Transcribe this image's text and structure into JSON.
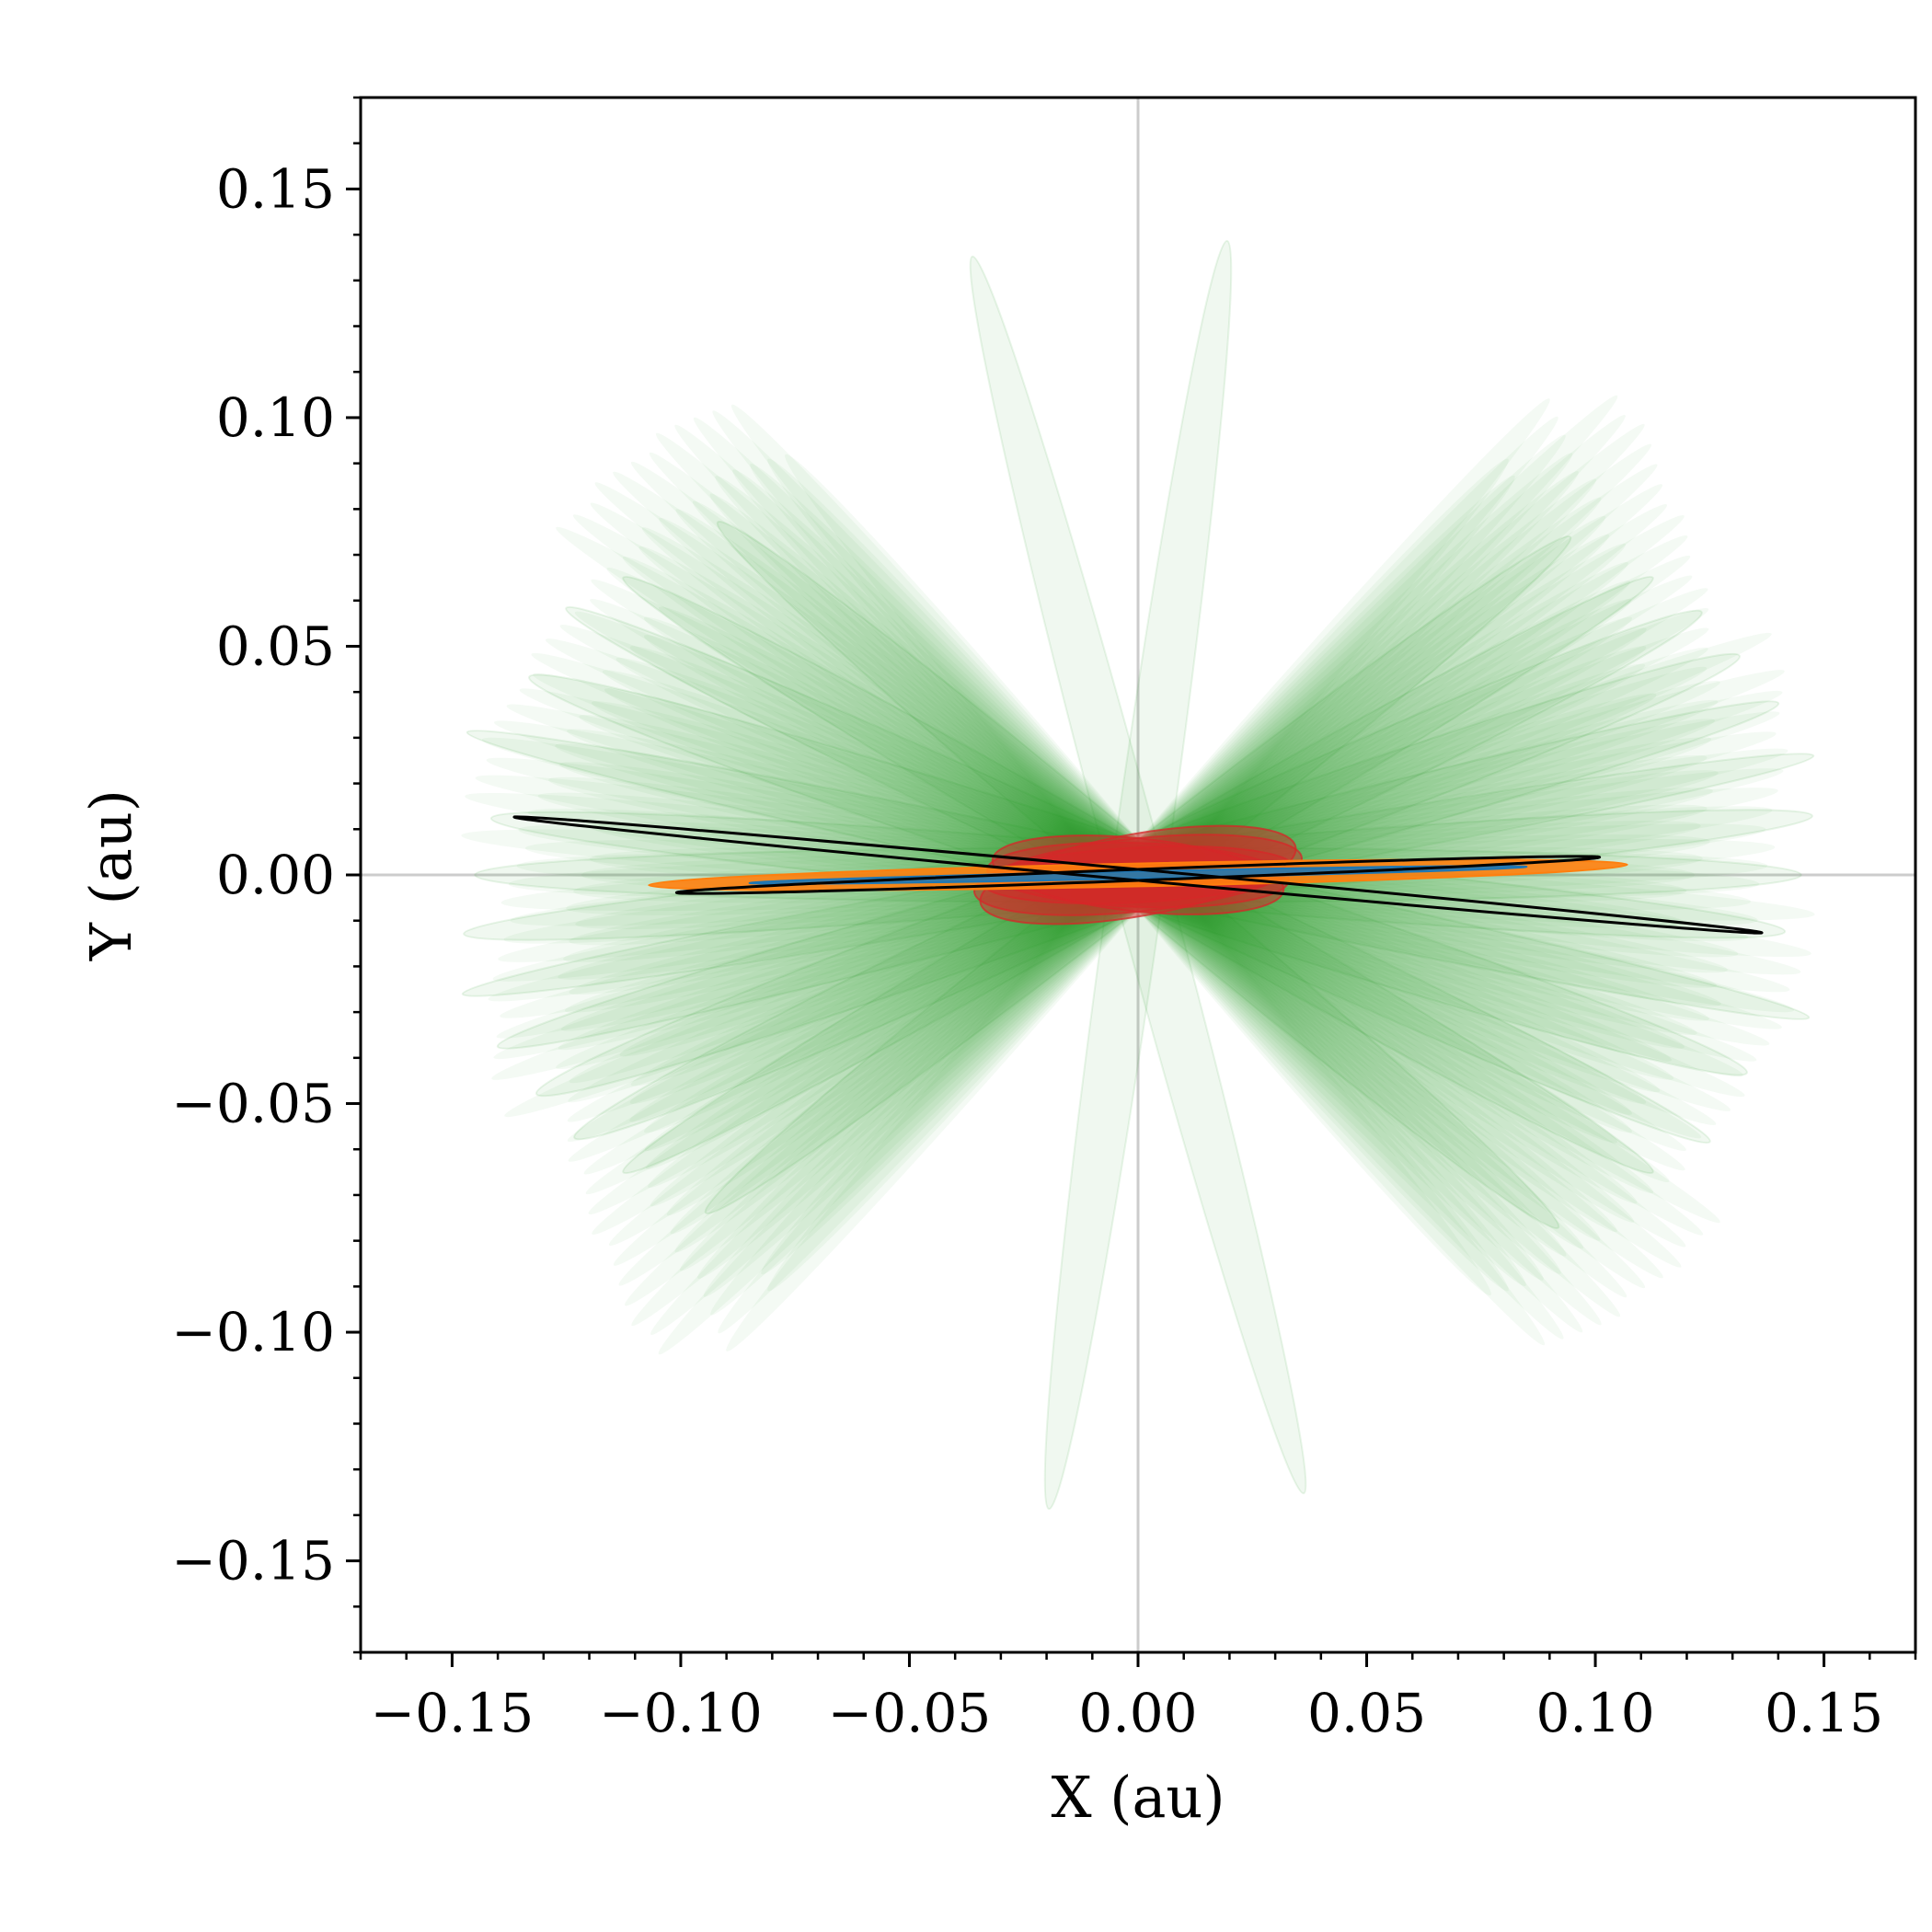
{
  "chart_data": {
    "type": "line",
    "title": "",
    "xlabel": "X (au)",
    "ylabel": "Y (au)",
    "xlim": [
      -0.17,
      0.17
    ],
    "ylim": [
      -0.17,
      0.17
    ],
    "xticks": [
      -0.15,
      -0.1,
      -0.05,
      0.0,
      0.05,
      0.1,
      0.15
    ],
    "yticks": [
      -0.15,
      -0.1,
      -0.05,
      0.0,
      0.05,
      0.1,
      0.15
    ],
    "xtick_labels": [
      "−0.15",
      "−0.10",
      "−0.05",
      "0.00",
      "0.05",
      "0.10",
      "0.15"
    ],
    "ytick_labels": [
      "−0.15",
      "−0.10",
      "−0.05",
      "0.00",
      "0.05",
      "0.10",
      "0.15"
    ],
    "reference_lines": {
      "x0": true,
      "y0": true,
      "color": "#cccccc"
    },
    "grid": false,
    "legend": "none",
    "colors": {
      "ensemble_outer": "#2ca02c",
      "ensemble_mid": "#d62728",
      "ensemble_inner": "#ff7f0e",
      "ensemble_core": "#1f77b4",
      "best_fit": "#000000"
    },
    "series": [
      {
        "key": "green",
        "description_free": true,
        "color": "#2ca02c",
        "alpha": 0.07,
        "orbits": [
          {
            "a": 0.145,
            "b": 0.006,
            "angle": 15
          },
          {
            "a": 0.15,
            "b": 0.005,
            "angle": 10
          },
          {
            "a": 0.14,
            "b": 0.007,
            "angle": 20
          },
          {
            "a": 0.148,
            "b": 0.006,
            "angle": 5
          },
          {
            "a": 0.142,
            "b": 0.006,
            "angle": -5
          },
          {
            "a": 0.15,
            "b": 0.005,
            "angle": -12
          },
          {
            "a": 0.14,
            "b": 0.007,
            "angle": -18
          },
          {
            "a": 0.145,
            "b": 0.006,
            "angle": 0
          },
          {
            "a": 0.136,
            "b": 0.007,
            "angle": 25
          },
          {
            "a": 0.138,
            "b": 0.006,
            "angle": -25
          },
          {
            "a": 0.13,
            "b": 0.006,
            "angle": 30
          },
          {
            "a": 0.13,
            "b": 0.006,
            "angle": -30
          },
          {
            "a": 0.12,
            "b": 0.006,
            "angle": 38
          },
          {
            "a": 0.12,
            "b": 0.006,
            "angle": -40
          },
          {
            "a": 0.14,
            "b": 0.006,
            "angle": 82
          },
          {
            "a": 0.14,
            "b": 0.006,
            "angle": -75
          }
        ]
      },
      {
        "key": "red",
        "color": "#d62728",
        "alpha": 0.5,
        "orbits": [
          {
            "a": 0.034,
            "b": 0.006,
            "angle": 3
          },
          {
            "a": 0.036,
            "b": 0.008,
            "angle": 6
          },
          {
            "a": 0.033,
            "b": 0.007,
            "angle": -2
          },
          {
            "a": 0.035,
            "b": 0.009,
            "angle": 10
          },
          {
            "a": 0.032,
            "b": 0.008,
            "angle": -6
          }
        ]
      },
      {
        "key": "orange",
        "color": "#ff7f0e",
        "alpha": 0.9,
        "orbits": [
          {
            "a": 0.107,
            "b": 0.0025,
            "angle": 1.2
          }
        ]
      },
      {
        "key": "blue",
        "color": "#1f77b4",
        "alpha": 0.9,
        "orbits": [
          {
            "a": 0.085,
            "b": 0.0008,
            "angle": 1.2
          }
        ]
      },
      {
        "key": "black",
        "color": "#000000",
        "alpha": 1,
        "orbits": [
          {
            "a": 0.137,
            "b": 0.0012,
            "angle": -5.3
          },
          {
            "a": 0.101,
            "b": 0.0012,
            "angle": 2.2
          }
        ]
      }
    ]
  }
}
